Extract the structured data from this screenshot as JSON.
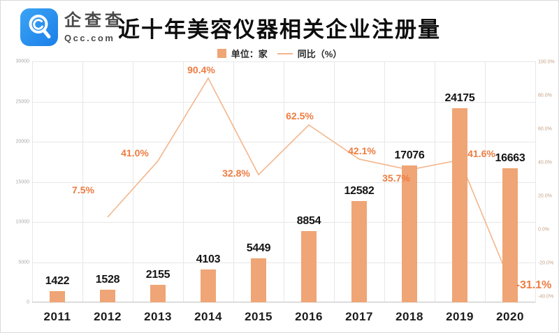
{
  "brand": {
    "name_cn": "企查查",
    "domain": "Qcc.com"
  },
  "title": "近十年美容仪器相关企业注册量",
  "legend": {
    "bar_label": "单位：家",
    "line_label": "同比（%）"
  },
  "chart_data": {
    "type": "bar",
    "subtype": "bar+line combo",
    "title": "近十年美容仪器相关企业注册量",
    "categories": [
      "2011",
      "2012",
      "2013",
      "2014",
      "2015",
      "2016",
      "2017",
      "2018",
      "2019",
      "2020"
    ],
    "series": [
      {
        "name": "单位：家",
        "type": "bar",
        "values": [
          1422,
          1528,
          2155,
          4103,
          5449,
          8854,
          12582,
          17076,
          24175,
          16663
        ],
        "value_labels": [
          "1422",
          "1528",
          "2155",
          "4103",
          "5449",
          "8854",
          "12582",
          "17076",
          "24175",
          "16663"
        ],
        "color": "#efa575",
        "axis": "left"
      },
      {
        "name": "同比（%）",
        "type": "line",
        "values": [
          null,
          7.5,
          41.0,
          90.4,
          32.8,
          62.5,
          42.1,
          35.7,
          41.6,
          -31.1
        ],
        "value_labels": [
          "",
          "7.5%",
          "41.0%",
          "90.4%",
          "32.8%",
          "62.5%",
          "42.1%",
          "35.7%",
          "41.6%",
          "-31.1%"
        ],
        "color": "#f3b68c",
        "label_color": "#ee7c41",
        "axis": "right"
      }
    ],
    "y_axis_left": {
      "min": 0,
      "max": 30000,
      "step": 5000,
      "ticks": [
        "30000",
        "25000",
        "20000",
        "15000",
        "10000",
        "5000",
        "0"
      ]
    },
    "y_axis_right": {
      "min": -40,
      "max": 100,
      "step": 20,
      "ticks": [
        "100.0%",
        "80.0%",
        "60.0%",
        "40.0%",
        "20.0%",
        "0.0%",
        "-20.0%",
        "-40.0%"
      ]
    },
    "grid": true,
    "legend_position": "top"
  }
}
